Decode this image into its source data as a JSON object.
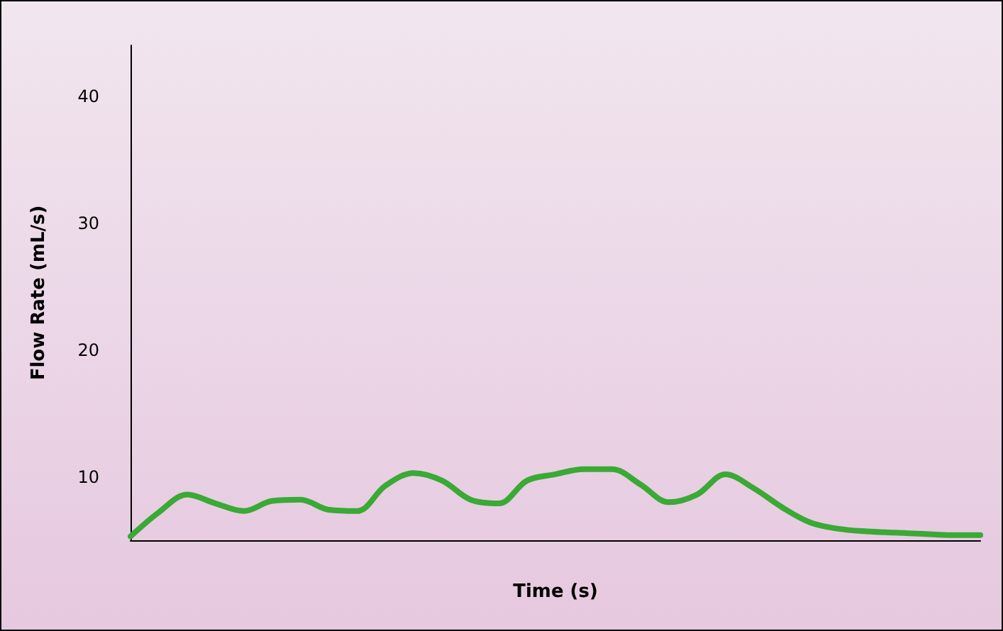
{
  "chart_data": {
    "type": "line",
    "xlabel": "Time (s)",
    "ylabel": "Flow Rate (mL/s)",
    "categories": [
      null,
      null,
      null,
      null,
      null,
      null,
      null,
      null,
      null,
      null,
      null,
      null,
      null,
      null,
      null,
      null,
      null,
      null,
      null,
      null,
      null,
      null,
      null,
      null,
      null,
      null,
      null,
      null,
      null,
      null,
      null
    ],
    "series": [
      {
        "color": "#3aa935",
        "values": [
          5.3,
          7.2,
          8.6,
          7.9,
          7.3,
          8.1,
          8.2,
          7.4,
          7.3,
          9.3,
          10.3,
          9.7,
          8.2,
          7.9,
          9.7,
          10.2,
          10.6,
          10.6,
          9.4,
          8.0,
          8.6,
          10.2,
          9.1,
          7.6,
          6.4,
          5.9,
          5.7,
          5.6,
          5.5,
          5.4,
          5.4
        ]
      }
    ],
    "ylim": [
      5,
      44
    ],
    "yticks": [
      10,
      20,
      30,
      40
    ],
    "grid": false,
    "marker": "none",
    "line_style": "solid",
    "tick_labels": "y"
  }
}
